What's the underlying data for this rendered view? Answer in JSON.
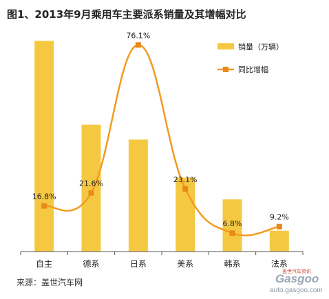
{
  "title": "图1、2013年9月乘用车主要派系销量及其增幅对比",
  "source": "来源：盖世汽车网",
  "watermark": {
    "logo": "Gasgoo",
    "url": "auto.gasgoo.com",
    "tagline": "盖世汽车资讯"
  },
  "colors": {
    "bar": "#F5C842",
    "line": "#F39A1E",
    "marker": "#E8891A",
    "axis": "#555555"
  },
  "chart_data": {
    "type": "bar",
    "categories": [
      "自主",
      "德系",
      "日系",
      "美系",
      "韩系",
      "法系"
    ],
    "series": [
      {
        "name": "销量（万辆）",
        "type": "bar",
        "axis": "left",
        "values": [
          48.5,
          29.2,
          25.8,
          17.0,
          12.0,
          4.8
        ]
      },
      {
        "name": "同比增幅",
        "type": "line",
        "axis": "right",
        "values": [
          16.8,
          21.6,
          76.1,
          23.1,
          6.8,
          9.2
        ]
      }
    ],
    "data_labels": [
      "16.8%",
      "21.6%",
      "76.1%",
      "23.1%",
      "6.8%",
      "9.2%"
    ],
    "legend": {
      "placement": "top-right",
      "items": [
        "销量（万辆）",
        "同比增幅"
      ]
    },
    "ylim_left": [
      0,
      50
    ],
    "ylim_right": [
      0,
      80
    ],
    "grid": false
  }
}
